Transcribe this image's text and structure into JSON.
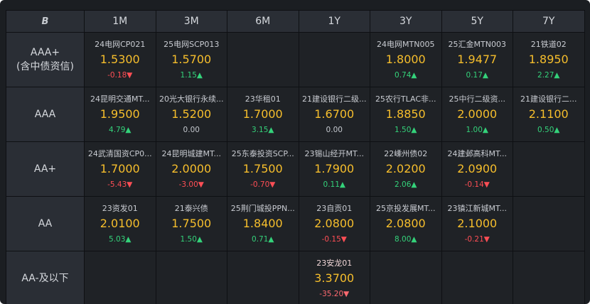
{
  "header": {
    "logo": "B",
    "tenors": [
      "1M",
      "3M",
      "6M",
      "1Y",
      "3Y",
      "5Y",
      "7Y"
    ]
  },
  "icons": {
    "up": "▲",
    "down": "▼"
  },
  "rows": [
    {
      "rating_lines": [
        "AAA+",
        "(含中债资信)"
      ],
      "cells": [
        {
          "name": "24电网CP021",
          "yield": "1.5300",
          "change": "-0.18",
          "dir": "down"
        },
        {
          "name": "25电网SCP013",
          "yield": "1.5700",
          "change": "1.15",
          "dir": "up"
        },
        null,
        null,
        {
          "name": "24电网MTN005",
          "yield": "1.8000",
          "change": "0.74",
          "dir": "up"
        },
        {
          "name": "25汇金MTN003",
          "yield": "1.9477",
          "change": "0.17",
          "dir": "up"
        },
        {
          "name": "21铁道02",
          "yield": "1.8950",
          "change": "2.27",
          "dir": "up"
        }
      ]
    },
    {
      "rating_lines": [
        "AAA"
      ],
      "cells": [
        {
          "name": "24昆明交通MT...",
          "yield": "1.9500",
          "change": "4.79",
          "dir": "up"
        },
        {
          "name": "20光大银行永续...",
          "yield": "1.5200",
          "change": "0.00",
          "dir": "flat"
        },
        {
          "name": "23华租01",
          "yield": "1.7000",
          "change": "3.15",
          "dir": "up"
        },
        {
          "name": "21建设银行二级...",
          "yield": "1.6700",
          "change": "0.00",
          "dir": "flat"
        },
        {
          "name": "25农行TLAC非...",
          "yield": "1.8850",
          "change": "1.50",
          "dir": "up"
        },
        {
          "name": "25中行二级资...",
          "yield": "2.0000",
          "change": "1.00",
          "dir": "up"
        },
        {
          "name": "21建设银行二...",
          "yield": "2.1100",
          "change": "0.50",
          "dir": "up"
        }
      ]
    },
    {
      "rating_lines": [
        "AA+"
      ],
      "cells": [
        {
          "name": "24武清国资CP0...",
          "yield": "1.7000",
          "change": "-5.43",
          "dir": "down"
        },
        {
          "name": "24昆明城建MT...",
          "yield": "2.0000",
          "change": "-3.00",
          "dir": "down"
        },
        {
          "name": "25东泰投资SCP...",
          "yield": "1.7500",
          "change": "-0.70",
          "dir": "down"
        },
        {
          "name": "23锡山经开MT...",
          "yield": "1.7900",
          "change": "0.11",
          "dir": "up"
        },
        {
          "name": "22嵊州债02",
          "yield": "2.0200",
          "change": "2.06",
          "dir": "up"
        },
        {
          "name": "24建邺高科MT...",
          "yield": "2.0900",
          "change": "-0.14",
          "dir": "down"
        },
        null
      ]
    },
    {
      "rating_lines": [
        "AA"
      ],
      "cells": [
        {
          "name": "23资发01",
          "yield": "2.0100",
          "change": "5.03",
          "dir": "up"
        },
        {
          "name": "21泰兴债",
          "yield": "1.7500",
          "change": "1.50",
          "dir": "up"
        },
        {
          "name": "25荆门城投PPN...",
          "yield": "1.8400",
          "change": "0.71",
          "dir": "up"
        },
        {
          "name": "23自贡01",
          "yield": "2.0800",
          "change": "-0.15",
          "dir": "down"
        },
        {
          "name": "25京投发展MT...",
          "yield": "2.0800",
          "change": "8.00",
          "dir": "up"
        },
        {
          "name": "23镇江新城MT...",
          "yield": "2.1000",
          "change": "-0.21",
          "dir": "down"
        },
        null
      ]
    },
    {
      "rating_lines": [
        "AA-及以下"
      ],
      "cells": [
        null,
        null,
        null,
        {
          "name": "23安龙01",
          "yield": "3.3700",
          "change": "-35.20",
          "dir": "down",
          "highlight": true
        },
        null,
        null,
        null
      ]
    }
  ],
  "colors": {
    "panel_bg": "#1b1e22",
    "header_bg": "#2a2e35",
    "up_bg": "#1f4a34",
    "down_bg": "#4a262b",
    "flat_bg": "#252a31",
    "highlight_bg": "#8e2b2e",
    "yield_text": "#f6be2c",
    "up_text": "#34d27a",
    "down_text": "#ff4e55"
  }
}
